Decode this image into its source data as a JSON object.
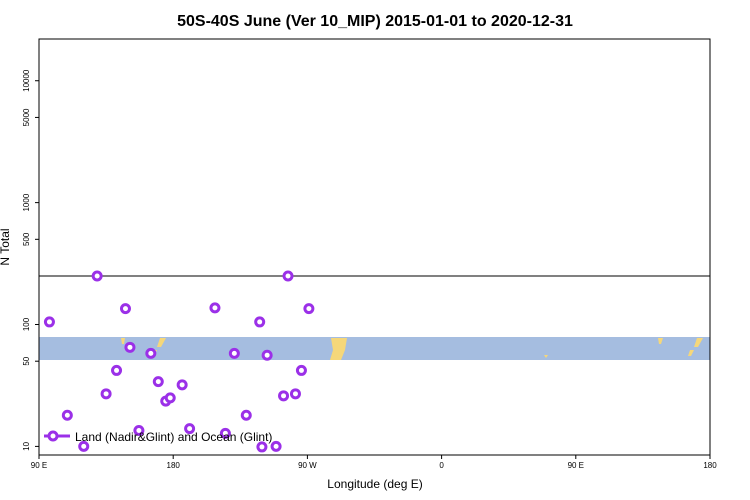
{
  "chart_data": {
    "type": "scatter",
    "title": "50S-40S June (Ver 10_MIP)   2015-01-01 to 2020-12-31",
    "xlabel": "Longitude (deg E)",
    "ylabel": "N Total",
    "x_scale": "linear",
    "y_scale": "log",
    "xlim": [
      90,
      450
    ],
    "ylim": [
      8.5,
      22000
    ],
    "x_ticks": [
      {
        "value": 90,
        "label": "90 E"
      },
      {
        "value": 180,
        "label": "180"
      },
      {
        "value": 270,
        "label": "90 W"
      },
      {
        "value": 360,
        "label": "0"
      },
      {
        "value": 450,
        "label": "90 E"
      },
      {
        "value": 540,
        "label": "180"
      }
    ],
    "y_ticks": [
      {
        "value": 10,
        "label": "10"
      },
      {
        "value": 50,
        "label": "50"
      },
      {
        "value": 100,
        "label": "100"
      },
      {
        "value": 500,
        "label": "500"
      },
      {
        "value": 1000,
        "label": "1000"
      },
      {
        "value": 5000,
        "label": "5000"
      },
      {
        "value": 10000,
        "label": "10000"
      }
    ],
    "reference_line": {
      "y": 250
    },
    "colors": {
      "series": "#9b30e8",
      "ocean": "#a5bde0",
      "land": "#f5d77a",
      "frame": "#000000"
    },
    "legend": {
      "position": "bottom-left",
      "entries": [
        "Land (Nadir&Glint) and Ocean (Glint)"
      ]
    },
    "series": [
      {
        "name": "Land (Nadir&Glint) and Ocean (Glint)",
        "marker": "open-circle",
        "points": [
          {
            "x": 97,
            "y": 105
          },
          {
            "x": 109,
            "y": 18
          },
          {
            "x": 120,
            "y": 10
          },
          {
            "x": 129,
            "y": 250
          },
          {
            "x": 135,
            "y": 27
          },
          {
            "x": 142,
            "y": 42
          },
          {
            "x": 148,
            "y": 135
          },
          {
            "x": 151,
            "y": 65
          },
          {
            "x": 157,
            "y": 13.5
          },
          {
            "x": 165,
            "y": 58
          },
          {
            "x": 170,
            "y": 34
          },
          {
            "x": 175,
            "y": 23.5
          },
          {
            "x": 178,
            "y": 25
          },
          {
            "x": 186,
            "y": 32
          },
          {
            "x": 191,
            "y": 14
          },
          {
            "x": 208,
            "y": 137
          },
          {
            "x": 215,
            "y": 12.8
          },
          {
            "x": 221,
            "y": 58
          },
          {
            "x": 229,
            "y": 18
          },
          {
            "x": 238,
            "y": 105
          },
          {
            "x": 243,
            "y": 56
          },
          {
            "x": 239.5,
            "y": 9.9
          },
          {
            "x": 249,
            "y": 10
          },
          {
            "x": 254,
            "y": 26
          },
          {
            "x": 257,
            "y": 250
          },
          {
            "x": 262,
            "y": 27
          },
          {
            "x": 266,
            "y": 42
          },
          {
            "x": 271,
            "y": 135
          }
        ]
      }
    ]
  },
  "points_px_note": ""
}
